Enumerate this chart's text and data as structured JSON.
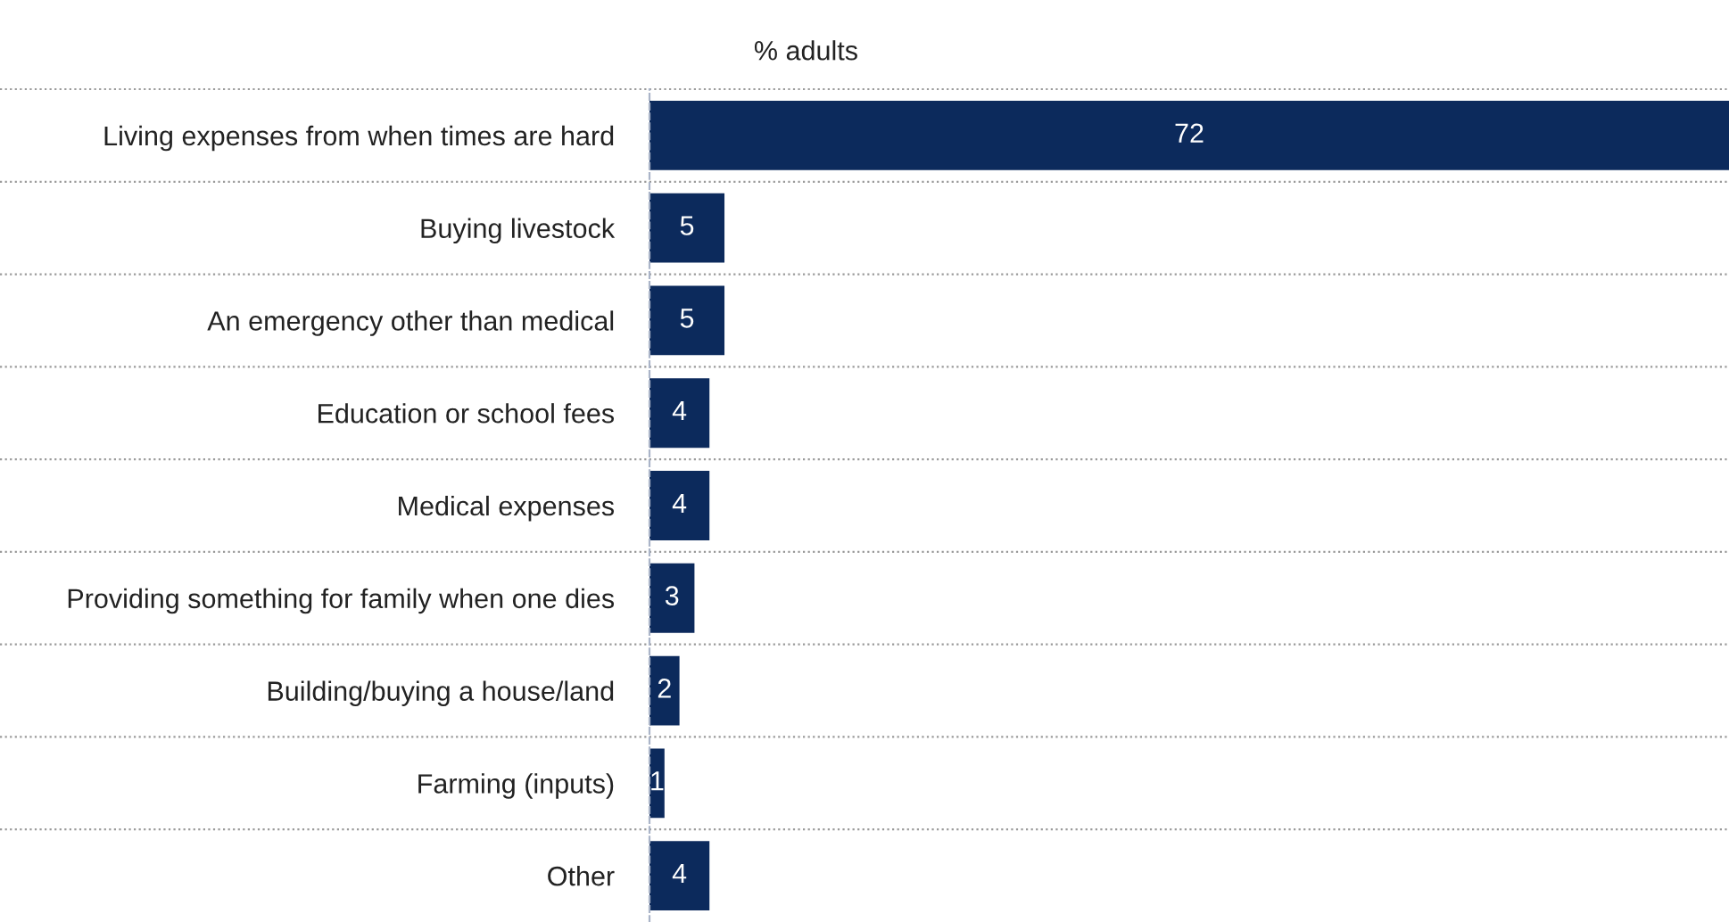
{
  "chart_data": {
    "type": "bar",
    "orientation": "horizontal",
    "xlabel": "% adults",
    "categories": [
      "Living expenses from when times are hard",
      "Buying livestock",
      "An emergency other than medical",
      "Education or school fees",
      "Medical expenses",
      "Providing something for family when one dies",
      "Building/buying a house/land",
      "Farming (inputs)",
      "Other"
    ],
    "values": [
      72,
      5,
      5,
      4,
      4,
      3,
      2,
      1,
      4
    ],
    "color": "#0c2a5c",
    "data_labels": true,
    "grid": "y",
    "tick_labels": "y"
  }
}
